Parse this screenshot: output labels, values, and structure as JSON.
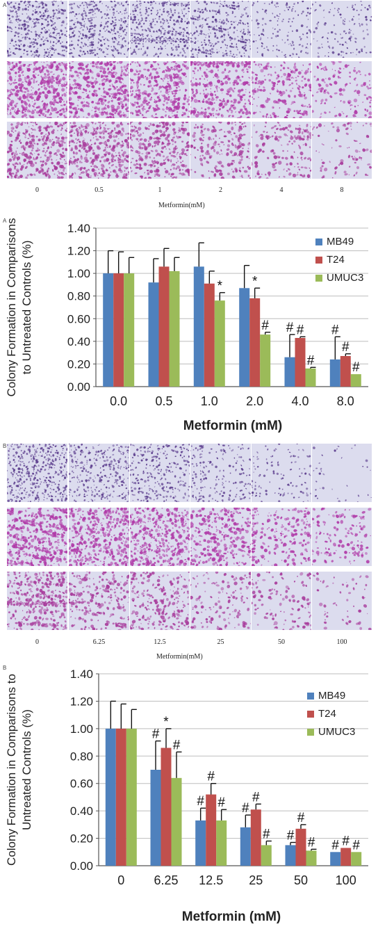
{
  "panelA": {
    "letter": "A",
    "doses": [
      "0",
      "0.5",
      "1",
      "2",
      "4",
      "8"
    ],
    "axis_caption": "Metformin(mM)",
    "densities": [
      [
        1.0,
        0.9,
        0.95,
        0.85,
        0.35,
        0.3
      ],
      [
        1.0,
        0.95,
        0.8,
        0.75,
        0.5,
        0.3
      ],
      [
        0.75,
        0.8,
        0.7,
        0.45,
        0.35,
        0.2
      ]
    ],
    "colors": [
      "#5a3b8c",
      "#b03aa8",
      "#a83c9c"
    ]
  },
  "panelB": {
    "letter": "B",
    "doses": [
      "0",
      "6.25",
      "12.5",
      "25",
      "50",
      "100"
    ],
    "axis_caption": "Metformin(mM)",
    "densities": [
      [
        1.0,
        0.7,
        0.65,
        0.45,
        0.25,
        0.08
      ],
      [
        1.0,
        0.9,
        0.85,
        0.75,
        0.45,
        0.3
      ],
      [
        0.8,
        0.55,
        0.5,
        0.3,
        0.25,
        0.12
      ]
    ],
    "colors": [
      "#5a3b8c",
      "#b03aa8",
      "#a83c9c"
    ]
  },
  "chart_data": [
    {
      "type": "bar",
      "panel_letter": "A",
      "categories": [
        "0.0",
        "0.5",
        "1.0",
        "2.0",
        "4.0",
        "8.0"
      ],
      "series": [
        {
          "name": "MB49",
          "color": "#4f81bd",
          "values": [
            1.0,
            0.92,
            1.06,
            0.87,
            0.26,
            0.24
          ],
          "errors": [
            0.2,
            0.21,
            0.21,
            0.2,
            0.2,
            0.2
          ]
        },
        {
          "name": "T24",
          "color": "#c0504d",
          "values": [
            1.0,
            1.06,
            0.91,
            0.78,
            0.43,
            0.27
          ],
          "errors": [
            0.19,
            0.16,
            0.11,
            0.09,
            0.01,
            0.02
          ]
        },
        {
          "name": "UMUC3",
          "color": "#9bbb59",
          "values": [
            1.0,
            1.02,
            0.76,
            0.46,
            0.16,
            0.11
          ],
          "errors": [
            0.14,
            0.12,
            0.07,
            0.02,
            0.01,
            0.0
          ]
        }
      ],
      "annotations": [
        {
          "category": 2,
          "series": 2,
          "text": "*"
        },
        {
          "category": 3,
          "series": 1,
          "text": "*"
        },
        {
          "category": 3,
          "series": 2,
          "text": "#"
        },
        {
          "category": 4,
          "series": 0,
          "text": "#"
        },
        {
          "category": 4,
          "series": 1,
          "text": "#"
        },
        {
          "category": 4,
          "series": 2,
          "text": "#"
        },
        {
          "category": 5,
          "series": 0,
          "text": "#"
        },
        {
          "category": 5,
          "series": 1,
          "text": "#"
        },
        {
          "category": 5,
          "series": 2,
          "text": "#"
        }
      ],
      "title": "",
      "xlabel": "Metformin  (mM)",
      "ylabel_lines": [
        "Colony Formation in Comparisons",
        "to Untreated Controls (%)"
      ],
      "ylim": [
        0,
        1.4
      ],
      "yticks": [
        "0.00",
        "0.20",
        "0.40",
        "0.60",
        "0.80",
        "1.00",
        "1.20",
        "1.40"
      ],
      "grid": true,
      "legend": "top-right"
    },
    {
      "type": "bar",
      "panel_letter": "B",
      "categories": [
        "0",
        "6.25",
        "12.5",
        "25",
        "50",
        "100"
      ],
      "series": [
        {
          "name": "MB49",
          "color": "#4f81bd",
          "values": [
            1.0,
            0.7,
            0.33,
            0.28,
            0.15,
            0.1
          ],
          "errors": [
            0.2,
            0.21,
            0.09,
            0.09,
            0.02,
            0.0
          ]
        },
        {
          "name": "T24",
          "color": "#c0504d",
          "values": [
            1.0,
            0.86,
            0.52,
            0.41,
            0.27,
            0.13
          ],
          "errors": [
            0.18,
            0.14,
            0.08,
            0.04,
            0.03,
            0.0
          ]
        },
        {
          "name": "UMUC3",
          "color": "#9bbb59",
          "values": [
            1.0,
            0.64,
            0.33,
            0.15,
            0.11,
            0.1
          ],
          "errors": [
            0.14,
            0.19,
            0.08,
            0.03,
            0.01,
            0.0
          ]
        }
      ],
      "annotations": [
        {
          "category": 1,
          "series": 0,
          "text": "#"
        },
        {
          "category": 1,
          "series": 1,
          "text": "*"
        },
        {
          "category": 1,
          "series": 2,
          "text": "#"
        },
        {
          "category": 2,
          "series": 0,
          "text": "#"
        },
        {
          "category": 2,
          "series": 1,
          "text": "#"
        },
        {
          "category": 2,
          "series": 2,
          "text": "#"
        },
        {
          "category": 3,
          "series": 0,
          "text": "#"
        },
        {
          "category": 3,
          "series": 1,
          "text": "#"
        },
        {
          "category": 3,
          "series": 2,
          "text": "#"
        },
        {
          "category": 4,
          "series": 0,
          "text": "#"
        },
        {
          "category": 4,
          "series": 1,
          "text": "#"
        },
        {
          "category": 4,
          "series": 2,
          "text": "#"
        },
        {
          "category": 5,
          "series": 0,
          "text": "#"
        },
        {
          "category": 5,
          "series": 1,
          "text": "#"
        },
        {
          "category": 5,
          "series": 2,
          "text": "#"
        }
      ],
      "title": "",
      "xlabel": "Metformin  (mM)",
      "ylabel_lines": [
        "Colony Formation in Comparisons to",
        "Untreated Controls (%)"
      ],
      "ylim": [
        0,
        1.4
      ],
      "yticks": [
        "0.00",
        "0.20",
        "0.40",
        "0.60",
        "0.80",
        "1.00",
        "1.20",
        "1.40"
      ],
      "grid": true,
      "legend": "top-right"
    }
  ]
}
